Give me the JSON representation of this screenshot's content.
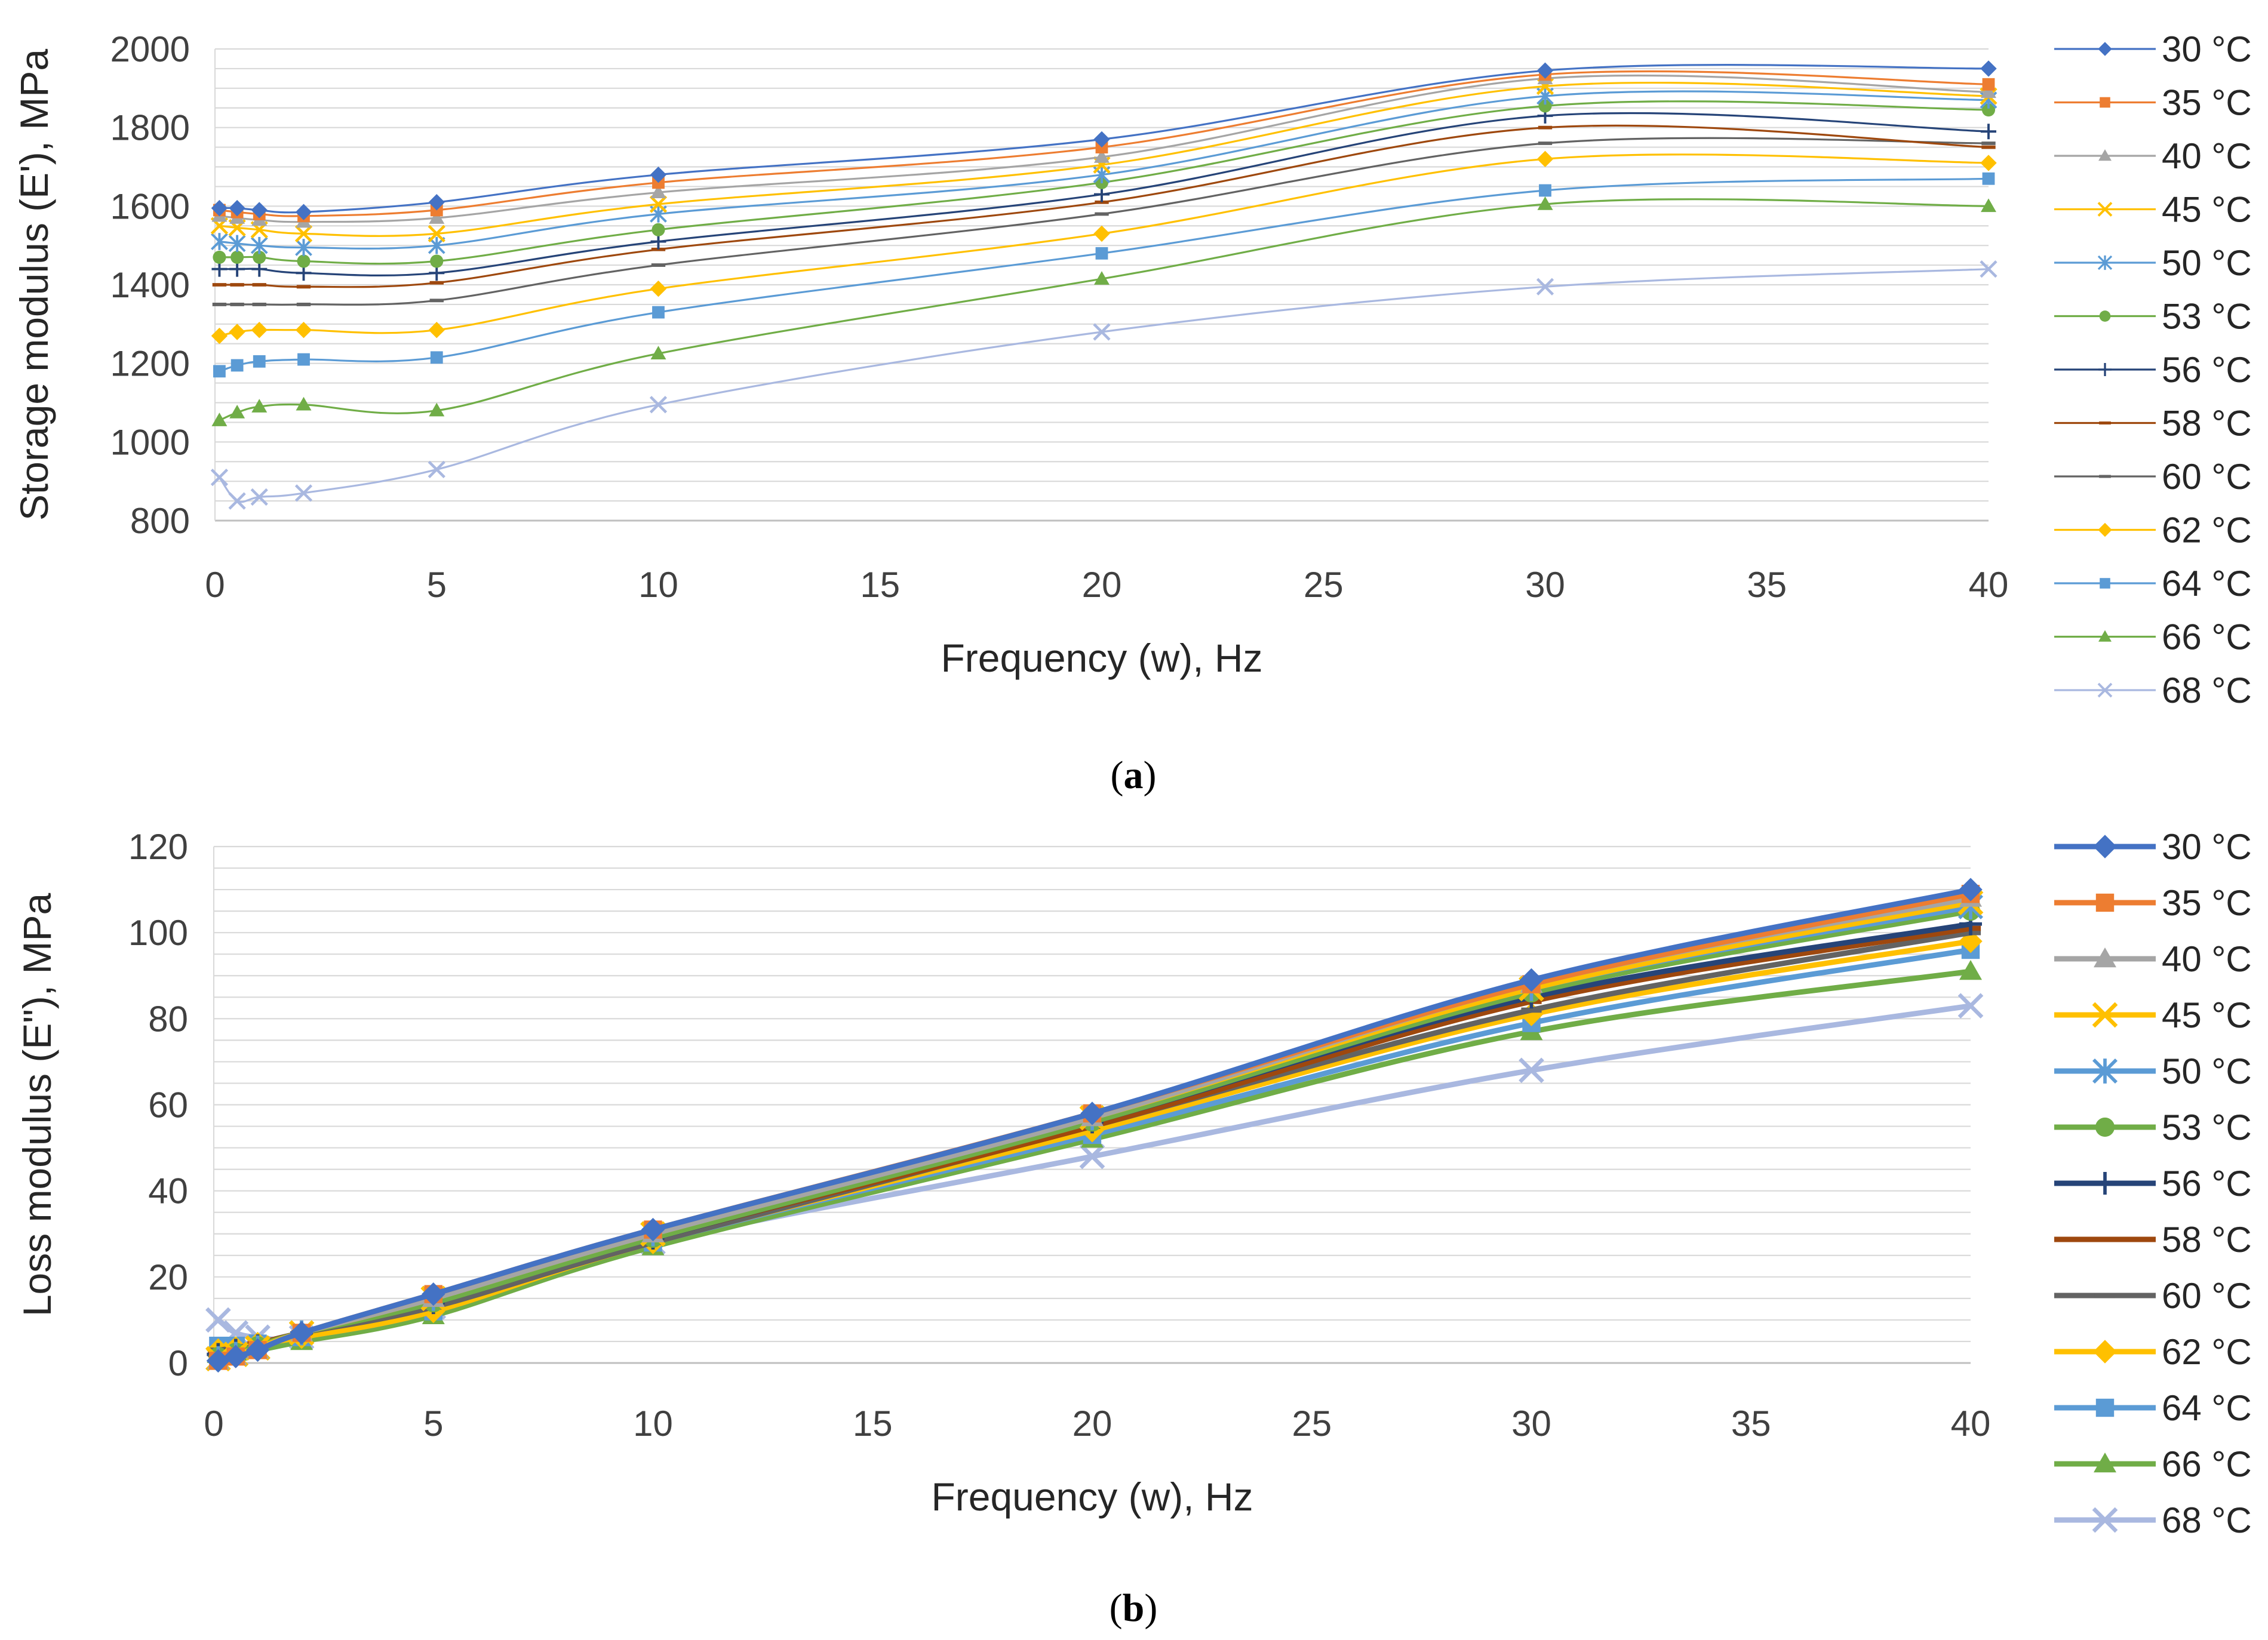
{
  "chart_data": [
    {
      "type": "line",
      "panel": "a",
      "caption_open": "(",
      "caption_letter": "a",
      "caption_close": ")",
      "title": "",
      "xlabel": "Frequency (w), Hz",
      "ylabel": "Storage modulus (E'), MPa",
      "xlim": [
        0,
        40
      ],
      "ylim": [
        800,
        2000
      ],
      "xticks": [
        0,
        5,
        10,
        15,
        20,
        25,
        30,
        35,
        40
      ],
      "yticks": [
        800,
        1000,
        1200,
        1400,
        1600,
        1800,
        2000
      ],
      "grid": "horizontal",
      "legend": "right",
      "x": [
        0.1,
        0.5,
        1,
        2,
        5,
        10,
        20,
        30,
        40
      ],
      "series": [
        {
          "name": "30 °C",
          "color": "#4472C4",
          "marker": "diamond",
          "values": [
            1595,
            1595,
            1590,
            1585,
            1610,
            1680,
            1770,
            1945,
            1950
          ]
        },
        {
          "name": "35 °C",
          "color": "#ED7D31",
          "marker": "square",
          "values": [
            1590,
            1585,
            1580,
            1575,
            1590,
            1660,
            1750,
            1935,
            1910
          ]
        },
        {
          "name": "40 °C",
          "color": "#A5A5A5",
          "marker": "triangle",
          "values": [
            1575,
            1570,
            1565,
            1560,
            1570,
            1635,
            1725,
            1925,
            1890
          ]
        },
        {
          "name": "45 °C",
          "color": "#FFC000",
          "marker": "x",
          "values": [
            1550,
            1545,
            1540,
            1530,
            1530,
            1605,
            1705,
            1905,
            1880
          ]
        },
        {
          "name": "50 °C",
          "color": "#5B9BD5",
          "marker": "star",
          "values": [
            1510,
            1505,
            1500,
            1495,
            1500,
            1580,
            1680,
            1880,
            1870
          ]
        },
        {
          "name": "53 °C",
          "color": "#70AD47",
          "marker": "circle",
          "values": [
            1470,
            1470,
            1470,
            1460,
            1460,
            1540,
            1660,
            1855,
            1845
          ]
        },
        {
          "name": "56 °C",
          "color": "#264478",
          "marker": "plus",
          "values": [
            1440,
            1440,
            1440,
            1430,
            1430,
            1510,
            1630,
            1830,
            1790
          ]
        },
        {
          "name": "58 °C",
          "color": "#9E480E",
          "marker": "dash",
          "values": [
            1400,
            1400,
            1400,
            1395,
            1405,
            1490,
            1610,
            1800,
            1750
          ]
        },
        {
          "name": "60 °C",
          "color": "#636363",
          "marker": "dash",
          "values": [
            1350,
            1350,
            1350,
            1350,
            1360,
            1450,
            1580,
            1760,
            1760
          ]
        },
        {
          "name": "62 °C",
          "color": "#FFC000",
          "marker": "diamond",
          "values": [
            1270,
            1280,
            1285,
            1285,
            1285,
            1390,
            1530,
            1720,
            1710
          ]
        },
        {
          "name": "64 °C",
          "color": "#5B9BD5",
          "marker": "square",
          "values": [
            1180,
            1195,
            1205,
            1210,
            1215,
            1330,
            1480,
            1640,
            1670
          ]
        },
        {
          "name": "66 °C",
          "color": "#70AD47",
          "marker": "triangle",
          "values": [
            1055,
            1075,
            1090,
            1095,
            1080,
            1225,
            1415,
            1605,
            1600
          ]
        },
        {
          "name": "68 °C",
          "color": "#A9B8E0",
          "marker": "x",
          "values": [
            910,
            850,
            860,
            870,
            930,
            1095,
            1280,
            1395,
            1440
          ]
        }
      ]
    },
    {
      "type": "line",
      "panel": "b",
      "caption_open": "(",
      "caption_letter": "b",
      "caption_close": ")",
      "title": "",
      "xlabel": "Frequency (w), Hz",
      "ylabel": "Loss modulus (E\"), MPa",
      "xlim": [
        0,
        40
      ],
      "ylim": [
        0,
        120
      ],
      "xticks": [
        0,
        5,
        10,
        15,
        20,
        25,
        30,
        35,
        40
      ],
      "yticks": [
        0,
        20,
        40,
        60,
        80,
        100,
        120
      ],
      "grid": "horizontal",
      "legend": "right",
      "x": [
        0.1,
        0.5,
        1,
        2,
        5,
        10,
        20,
        30,
        40
      ],
      "series": [
        {
          "name": "30 °C",
          "color": "#4472C4",
          "marker": "diamond",
          "values": [
            0.5,
            1.5,
            3,
            7,
            16,
            31,
            58,
            89,
            110
          ]
        },
        {
          "name": "35 °C",
          "color": "#ED7D31",
          "marker": "square",
          "values": [
            0.5,
            1.5,
            3,
            7,
            16,
            31,
            58,
            88,
            109
          ]
        },
        {
          "name": "40 °C",
          "color": "#A5A5A5",
          "marker": "triangle",
          "values": [
            0.5,
            1.5,
            3,
            7,
            15,
            30,
            57,
            88,
            108
          ]
        },
        {
          "name": "45 °C",
          "color": "#FFC000",
          "marker": "x",
          "values": [
            1,
            2,
            3.5,
            7,
            15,
            30,
            57,
            87,
            107
          ]
        },
        {
          "name": "50 °C",
          "color": "#5B9BD5",
          "marker": "star",
          "values": [
            1,
            2,
            3.5,
            7,
            15,
            30,
            57,
            87,
            106
          ]
        },
        {
          "name": "53 °C",
          "color": "#70AD47",
          "marker": "circle",
          "values": [
            1.5,
            2.5,
            4,
            7,
            14,
            29,
            56,
            86,
            105
          ]
        },
        {
          "name": "56 °C",
          "color": "#264478",
          "marker": "plus",
          "values": [
            2,
            3,
            4,
            7,
            14,
            29,
            56,
            85,
            102
          ]
        },
        {
          "name": "58 °C",
          "color": "#9E480E",
          "marker": "dash",
          "values": [
            2,
            3,
            4.5,
            7,
            14,
            29,
            55,
            84,
            101
          ]
        },
        {
          "name": "60 °C",
          "color": "#636363",
          "marker": "dash",
          "values": [
            3,
            3.5,
            4.5,
            7,
            13,
            28,
            55,
            82,
            100
          ]
        },
        {
          "name": "62 °C",
          "color": "#FFC000",
          "marker": "diamond",
          "values": [
            3,
            3.5,
            4.5,
            6,
            12,
            28,
            54,
            81,
            98
          ]
        },
        {
          "name": "64 °C",
          "color": "#5B9BD5",
          "marker": "square",
          "values": [
            4,
            4,
            4.5,
            6,
            12,
            28,
            53,
            79,
            96
          ]
        },
        {
          "name": "66 °C",
          "color": "#70AD47",
          "marker": "triangle",
          "values": [
            2,
            2.5,
            3,
            5,
            11,
            27,
            52,
            77,
            91
          ]
        },
        {
          "name": "68 °C",
          "color": "#A9B8E0",
          "marker": "x",
          "values": [
            10,
            7,
            6,
            6,
            13,
            28,
            48,
            68,
            83
          ]
        }
      ]
    }
  ]
}
